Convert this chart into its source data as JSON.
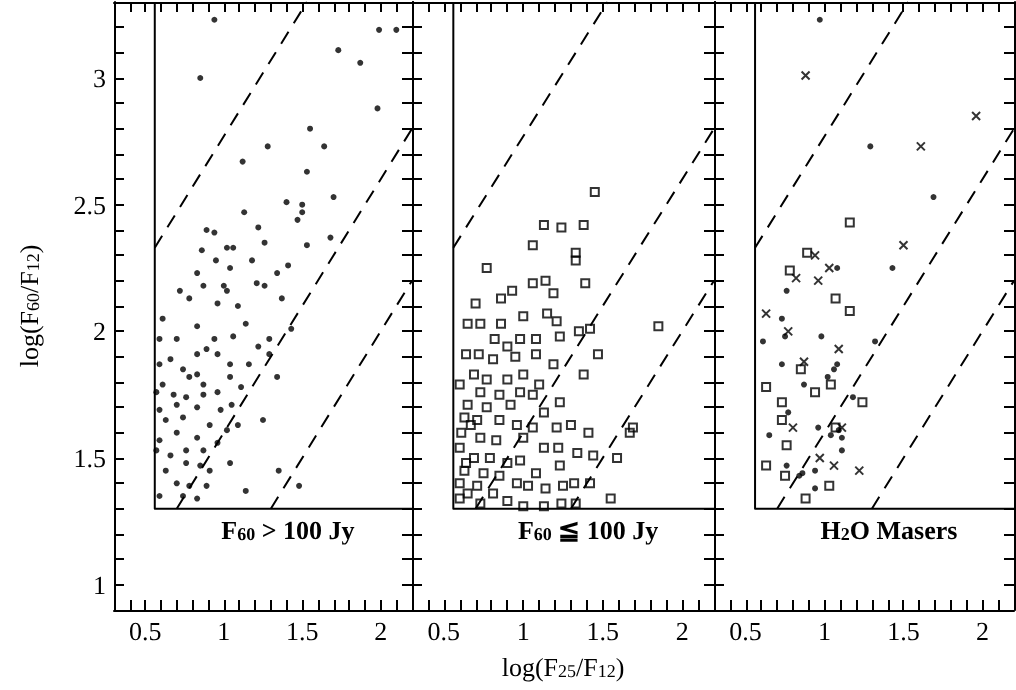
{
  "chart_data": [
    {
      "type": "scatter",
      "ylabel": "log(F$_{60}$/F$_{12}$)",
      "annotations": [
        "F$_{60}$ > 100 Jy"
      ],
      "xlim": [
        0.3,
        2.2
      ],
      "ylim": [
        0.9,
        3.3
      ],
      "xticks": [
        {
          "value": 0.3,
          "label": null
        },
        {
          "value": 0.4,
          "label": null
        },
        0.5,
        {
          "value": 0.6,
          "label": null
        },
        {
          "value": 0.7,
          "label": null
        },
        {
          "value": 0.8,
          "label": null
        },
        {
          "value": 0.9,
          "label": null
        },
        1,
        {
          "value": 1.1,
          "label": null
        },
        {
          "value": 1.2,
          "label": null
        },
        {
          "value": 1.3,
          "label": null
        },
        {
          "value": 1.4,
          "label": null
        },
        1.5,
        {
          "value": 1.6,
          "label": null
        },
        {
          "value": 1.7,
          "label": null
        },
        {
          "value": 1.8,
          "label": null
        },
        {
          "value": 1.9,
          "label": null
        },
        2,
        {
          "value": 2.1,
          "label": null
        },
        {
          "value": 2.2,
          "label": null
        }
      ],
      "yticks": [
        {
          "value": 0.9,
          "label": null
        },
        1,
        {
          "value": 1.1,
          "label": null
        },
        {
          "value": 1.2,
          "label": null
        },
        {
          "value": 1.3,
          "label": null
        },
        {
          "value": 1.4,
          "label": null
        },
        1.5,
        {
          "value": 1.6,
          "label": null
        },
        {
          "value": 1.7,
          "label": null
        },
        {
          "value": 1.8,
          "label": null
        },
        {
          "value": 1.9,
          "label": null
        },
        2,
        {
          "value": 2.1,
          "label": null
        },
        {
          "value": 2.2,
          "label": null
        },
        {
          "value": 2.3,
          "label": null
        },
        {
          "value": 2.4,
          "label": null
        },
        2.5,
        {
          "value": 2.6,
          "label": null
        },
        {
          "value": 2.7,
          "label": null
        },
        {
          "value": 2.8,
          "label": null
        },
        {
          "value": 2.9,
          "label": null
        },
        3,
        {
          "value": 3.1,
          "label": null
        },
        {
          "value": 3.2,
          "label": null
        },
        {
          "value": 3.3,
          "label": null
        }
      ],
      "series": [
        {
          "color": "#000000",
          "marker": "circle",
          "x": [
            0.94,
            0.85,
            2.1,
            1.99,
            1.73,
            1.87,
            1.98,
            1.55,
            1.64,
            1.28,
            1.12,
            1.53,
            1.7,
            1.5,
            1.5,
            1.47,
            1.4,
            1.53,
            1.68,
            1.26,
            1.41,
            1.13,
            1.22,
            0.89,
            0.94,
            1.02,
            1.06,
            0.86,
            0.95,
            1.04,
            1.18,
            1.34,
            1.21,
            1.26,
            1.37,
            1.0,
            1.02,
            1.09,
            1.14,
            1.29,
            1.43,
            1.34,
            1.29,
            1.22,
            1.16,
            1.25,
            1.04,
            1.14,
            1.35,
            1.48,
            0.72,
            0.83,
            0.78,
            0.61,
            0.59,
            0.7,
            0.83,
            0.94,
            1.06,
            0.96,
            0.83,
            0.66,
            0.59,
            0.74,
            0.83,
            0.87,
            0.78,
            0.61,
            0.57,
            0.68,
            0.76,
            0.87,
            0.96,
            1.04,
            1.11,
            1.05,
            0.98,
            0.83,
            0.7,
            0.59,
            0.63,
            0.74,
            0.91,
            1.02,
            1.09,
            0.83,
            0.7,
            0.59,
            0.76,
            0.87,
            0.96,
            0.66,
            0.76,
            0.85,
            0.91,
            0.63,
            0.7,
            0.78,
            0.89,
            0.59,
            0.74,
            0.83,
            1.04,
            0.89,
            0.57,
            0.96,
            0.87
          ],
          "values": [
            3.23,
            3.0,
            3.19,
            3.19,
            3.11,
            3.06,
            2.88,
            2.8,
            2.73,
            2.73,
            2.67,
            2.63,
            2.53,
            2.5,
            2.47,
            2.44,
            2.51,
            2.34,
            2.37,
            2.35,
            2.26,
            2.47,
            2.41,
            2.4,
            2.39,
            2.33,
            2.33,
            2.32,
            2.28,
            2.25,
            2.28,
            2.23,
            2.19,
            2.18,
            2.13,
            2.18,
            2.16,
            2.1,
            2.03,
            1.97,
            2.01,
            1.82,
            1.91,
            1.94,
            1.87,
            1.65,
            1.48,
            1.37,
            1.45,
            1.39,
            2.16,
            2.23,
            2.13,
            2.05,
            1.97,
            1.97,
            2.02,
            1.97,
            1.98,
            1.91,
            1.91,
            1.89,
            1.87,
            1.85,
            1.83,
            1.79,
            1.82,
            1.79,
            1.76,
            1.75,
            1.74,
            1.75,
            1.76,
            1.82,
            1.78,
            1.71,
            1.69,
            1.7,
            1.71,
            1.69,
            1.65,
            1.66,
            1.63,
            1.61,
            1.63,
            1.58,
            1.6,
            1.57,
            1.53,
            1.53,
            1.56,
            1.51,
            1.48,
            1.47,
            1.45,
            1.45,
            1.4,
            1.39,
            1.39,
            1.35,
            1.35,
            1.34,
            1.87,
            1.93,
            1.53,
            2.11,
            2.18
          ]
        },
        {
          "type": "line",
          "color": "#000000",
          "marker": "none",
          "line_style": "solid",
          "x": [
            0.56,
            0.56,
            2.2
          ],
          "values": [
            3.3,
            1.3,
            1.3
          ]
        },
        {
          "type": "line",
          "color": "#000000",
          "marker": "none",
          "line_style": "dashed",
          "x": [
            0.56,
            1.53
          ],
          "values": [
            2.33,
            3.3
          ]
        },
        {
          "type": "line",
          "color": "#000000",
          "marker": "none",
          "line_style": "dashed",
          "x": [
            0.7,
            2.2
          ],
          "values": [
            1.3,
            2.8
          ]
        },
        {
          "type": "line",
          "color": "#000000",
          "marker": "none",
          "line_style": "dashed",
          "x": [
            1.3,
            2.2
          ],
          "values": [
            1.3,
            2.2
          ]
        }
      ]
    },
    {
      "type": "scatter",
      "xlabel": "log(F$_{25}$/F$_{12}$)",
      "annotations": [
        "F$_{60}$ ≦ 100 Jy"
      ],
      "tick_labels": "x",
      "xlim": [
        0.3,
        2.2
      ],
      "ylim": [
        0.9,
        3.3
      ],
      "xticks": [
        {
          "value": 0.3,
          "label": null
        },
        {
          "value": 0.4,
          "label": null
        },
        0.5,
        {
          "value": 0.6,
          "label": null
        },
        {
          "value": 0.7,
          "label": null
        },
        {
          "value": 0.8,
          "label": null
        },
        {
          "value": 0.9,
          "label": null
        },
        1,
        {
          "value": 1.1,
          "label": null
        },
        {
          "value": 1.2,
          "label": null
        },
        {
          "value": 1.3,
          "label": null
        },
        {
          "value": 1.4,
          "label": null
        },
        1.5,
        {
          "value": 1.6,
          "label": null
        },
        {
          "value": 1.7,
          "label": null
        },
        {
          "value": 1.8,
          "label": null
        },
        {
          "value": 1.9,
          "label": null
        },
        2,
        {
          "value": 2.1,
          "label": null
        },
        {
          "value": 2.2,
          "label": null
        }
      ],
      "yticks": [
        {
          "value": 0.9,
          "label": null
        },
        {
          "value": 1,
          "label": null
        },
        {
          "value": 1.1,
          "label": null
        },
        {
          "value": 1.2,
          "label": null
        },
        {
          "value": 1.3,
          "label": null
        },
        {
          "value": 1.4,
          "label": null
        },
        {
          "value": 1.5,
          "label": null
        },
        {
          "value": 1.6,
          "label": null
        },
        {
          "value": 1.7,
          "label": null
        },
        {
          "value": 1.8,
          "label": null
        },
        {
          "value": 1.9,
          "label": null
        },
        {
          "value": 2,
          "label": null
        },
        {
          "value": 2.1,
          "label": null
        },
        {
          "value": 2.2,
          "label": null
        },
        {
          "value": 2.3,
          "label": null
        },
        {
          "value": 2.4,
          "label": null
        },
        {
          "value": 2.5,
          "label": null
        },
        {
          "value": 2.6,
          "label": null
        },
        {
          "value": 2.7,
          "label": null
        },
        {
          "value": 2.8,
          "label": null
        },
        {
          "value": 2.9,
          "label": null
        },
        {
          "value": 3,
          "label": null
        },
        {
          "value": 3.1,
          "label": null
        },
        {
          "value": 3.2,
          "label": null
        },
        {
          "value": 3.3,
          "label": null
        }
      ],
      "series": [
        {
          "color": "#000000",
          "marker": "square",
          "x": [
            1.45,
            1.13,
            1.24,
            1.38,
            1.06,
            1.33,
            1.33,
            0.77,
            1.14,
            1.06,
            0.93,
            1.39,
            1.19,
            0.7,
            0.86,
            1.0,
            1.15,
            0.65,
            0.73,
            0.86,
            1.21,
            1.85,
            1.42,
            1.23,
            0.82,
            0.98,
            1.08,
            1.35,
            0.9,
            0.64,
            0.72,
            0.95,
            1.08,
            1.47,
            0.81,
            1.19,
            1.38,
            0.69,
            0.77,
            0.9,
            1.0,
            1.1,
            0.6,
            0.73,
            0.85,
            0.98,
            1.06,
            1.23,
            0.65,
            0.77,
            0.92,
            1.13,
            0.63,
            0.71,
            0.85,
            0.96,
            1.06,
            1.21,
            1.3,
            1.41,
            1.69,
            1.67,
            0.61,
            0.73,
            0.83,
            1.0,
            1.13,
            1.22,
            1.34,
            1.44,
            1.59,
            0.6,
            0.69,
            0.79,
            0.9,
            0.98,
            1.23,
            1.08,
            0.63,
            0.75,
            0.85,
            0.96,
            0.6,
            0.71,
            0.81,
            1.03,
            1.14,
            1.25,
            1.32,
            1.42,
            1.55,
            0.6,
            0.73,
            0.9,
            1.0,
            1.13,
            1.24,
            1.33,
            0.65,
            0.67,
            0.64
          ],
          "values": [
            2.55,
            2.42,
            2.41,
            2.42,
            2.34,
            2.31,
            2.28,
            2.25,
            2.2,
            2.19,
            2.16,
            2.19,
            2.15,
            2.11,
            2.13,
            2.06,
            2.07,
            2.03,
            2.03,
            2.03,
            2.04,
            2.02,
            2.01,
            1.98,
            1.97,
            1.97,
            1.97,
            2.0,
            1.94,
            1.91,
            1.91,
            1.9,
            1.91,
            1.91,
            1.89,
            1.87,
            1.83,
            1.83,
            1.81,
            1.81,
            1.83,
            1.79,
            1.79,
            1.76,
            1.75,
            1.76,
            1.75,
            1.72,
            1.71,
            1.7,
            1.71,
            1.68,
            1.66,
            1.65,
            1.65,
            1.63,
            1.62,
            1.62,
            1.63,
            1.6,
            1.62,
            1.6,
            1.6,
            1.58,
            1.57,
            1.58,
            1.54,
            1.54,
            1.52,
            1.51,
            1.5,
            1.54,
            1.5,
            1.5,
            1.48,
            1.49,
            1.47,
            1.44,
            1.45,
            1.44,
            1.43,
            1.4,
            1.4,
            1.39,
            1.36,
            1.39,
            1.38,
            1.39,
            1.4,
            1.4,
            1.34,
            1.34,
            1.32,
            1.33,
            1.31,
            1.31,
            1.32,
            1.32,
            1.36,
            1.63,
            1.48
          ]
        },
        {
          "type": "line",
          "color": "#000000",
          "marker": "none",
          "line_style": "solid",
          "x": [
            0.56,
            0.56,
            2.2
          ],
          "values": [
            3.3,
            1.3,
            1.3
          ]
        },
        {
          "type": "line",
          "color": "#000000",
          "marker": "none",
          "line_style": "dashed",
          "x": [
            0.56,
            1.53
          ],
          "values": [
            2.33,
            3.3
          ]
        },
        {
          "type": "line",
          "color": "#000000",
          "marker": "none",
          "line_style": "dashed",
          "x": [
            0.7,
            2.2
          ],
          "values": [
            1.3,
            2.8
          ]
        },
        {
          "type": "line",
          "color": "#000000",
          "marker": "none",
          "line_style": "dashed",
          "x": [
            1.3,
            2.2
          ],
          "values": [
            1.3,
            2.2
          ]
        }
      ]
    },
    {
      "type": "scatter",
      "annotations": [
        "H$_{2}$O Masers"
      ],
      "tick_labels": "x",
      "xlim": [
        0.3,
        2.2
      ],
      "ylim": [
        0.9,
        3.3
      ],
      "xticks": [
        {
          "value": 0.3,
          "label": null
        },
        {
          "value": 0.4,
          "label": null
        },
        0.5,
        {
          "value": 0.6,
          "label": null
        },
        {
          "value": 0.7,
          "label": null
        },
        {
          "value": 0.8,
          "label": null
        },
        {
          "value": 0.9,
          "label": null
        },
        1,
        {
          "value": 1.1,
          "label": null
        },
        {
          "value": 1.2,
          "label": null
        },
        {
          "value": 1.3,
          "label": null
        },
        {
          "value": 1.4,
          "label": null
        },
        1.5,
        {
          "value": 1.6,
          "label": null
        },
        {
          "value": 1.7,
          "label": null
        },
        {
          "value": 1.8,
          "label": null
        },
        {
          "value": 1.9,
          "label": null
        },
        2,
        {
          "value": 2.1,
          "label": null
        },
        {
          "value": 2.2,
          "label": null
        }
      ],
      "yticks": [
        {
          "value": 0.9,
          "label": null
        },
        {
          "value": 1,
          "label": null
        },
        {
          "value": 1.1,
          "label": null
        },
        {
          "value": 1.2,
          "label": null
        },
        {
          "value": 1.3,
          "label": null
        },
        {
          "value": 1.4,
          "label": null
        },
        {
          "value": 1.5,
          "label": null
        },
        {
          "value": 1.6,
          "label": null
        },
        {
          "value": 1.7,
          "label": null
        },
        {
          "value": 1.8,
          "label": null
        },
        {
          "value": 1.9,
          "label": null
        },
        {
          "value": 2,
          "label": null
        },
        {
          "value": 2.1,
          "label": null
        },
        {
          "value": 2.2,
          "label": null
        },
        {
          "value": 2.3,
          "label": null
        },
        {
          "value": 2.4,
          "label": null
        },
        {
          "value": 2.5,
          "label": null
        },
        {
          "value": 2.6,
          "label": null
        },
        {
          "value": 2.7,
          "label": null
        },
        {
          "value": 2.8,
          "label": null
        },
        {
          "value": 2.9,
          "label": null
        },
        {
          "value": 3,
          "label": null
        },
        {
          "value": 3.1,
          "label": null
        },
        {
          "value": 3.2,
          "label": null
        },
        {
          "value": 3.3,
          "label": null
        }
      ],
      "series": [
        {
          "color": "#000000",
          "marker": "circle",
          "x": [
            0.97,
            1.29,
            1.69,
            1.43,
            1.08,
            0.76,
            0.73,
            0.61,
            0.75,
            0.98,
            1.32,
            0.73,
            1.08,
            1.06,
            0.87,
            1.02,
            1.18,
            0.77,
            0.65,
            0.96,
            1.09,
            1.11,
            1.04,
            1.11,
            0.76,
            0.86,
            0.94,
            0.84,
            0.94
          ],
          "values": [
            3.23,
            2.73,
            2.53,
            2.25,
            2.25,
            2.16,
            2.05,
            1.96,
            1.98,
            1.98,
            1.96,
            1.87,
            1.87,
            1.85,
            1.79,
            1.82,
            1.74,
            1.68,
            1.59,
            1.62,
            1.61,
            1.58,
            1.59,
            1.53,
            1.47,
            1.44,
            1.45,
            1.43,
            1.38
          ]
        },
        {
          "color": "#000000",
          "marker": "square",
          "x": [
            1.16,
            0.89,
            0.78,
            1.07,
            1.16,
            0.85,
            0.63,
            1.04,
            0.94,
            1.24,
            0.73,
            0.73,
            1.07,
            0.76,
            0.63,
            0.75,
            1.03,
            0.88
          ],
          "values": [
            2.43,
            2.31,
            2.24,
            2.13,
            2.08,
            1.85,
            1.78,
            1.79,
            1.76,
            1.72,
            1.72,
            1.65,
            1.62,
            1.55,
            1.47,
            1.43,
            1.39,
            1.34
          ]
        },
        {
          "color": "#000000",
          "marker": "cross",
          "x": [
            0.88,
            1.96,
            1.61,
            1.5,
            0.94,
            1.03,
            0.82,
            0.96,
            0.63,
            0.77,
            1.09,
            0.87,
            0.8,
            1.11,
            0.97,
            1.06,
            1.22
          ],
          "values": [
            3.01,
            2.85,
            2.73,
            2.34,
            2.3,
            2.25,
            2.21,
            2.2,
            2.07,
            2.0,
            1.93,
            1.88,
            1.62,
            1.62,
            1.5,
            1.47,
            1.45
          ]
        },
        {
          "type": "line",
          "color": "#000000",
          "marker": "none",
          "line_style": "solid",
          "x": [
            0.56,
            0.56,
            2.2
          ],
          "values": [
            3.3,
            1.3,
            1.3
          ]
        },
        {
          "type": "line",
          "color": "#000000",
          "marker": "none",
          "line_style": "dashed",
          "x": [
            0.56,
            1.53
          ],
          "values": [
            2.33,
            3.3
          ]
        },
        {
          "type": "line",
          "color": "#000000",
          "marker": "none",
          "line_style": "dashed",
          "x": [
            0.7,
            2.2
          ],
          "values": [
            1.3,
            2.8
          ]
        },
        {
          "type": "line",
          "color": "#000000",
          "marker": "none",
          "line_style": "dashed",
          "x": [
            1.3,
            2.2
          ],
          "values": [
            1.3,
            2.2
          ]
        }
      ]
    }
  ]
}
